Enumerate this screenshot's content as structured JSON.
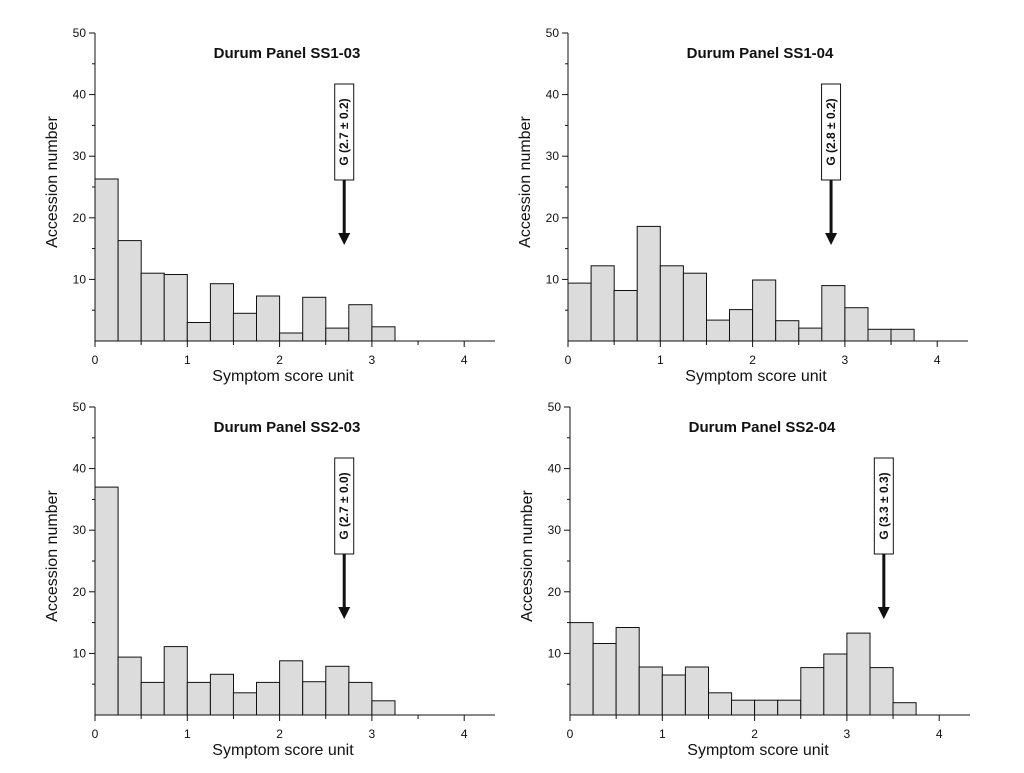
{
  "chart_data": [
    {
      "type": "bar",
      "title": "Durum Panel SS1-03",
      "xlabel": "Symptom score unit",
      "ylabel": "Accession  number",
      "xlim": [
        0,
        4.33
      ],
      "ylim": [
        0,
        50
      ],
      "x_ticks": [
        0,
        1,
        2,
        3,
        4
      ],
      "y_ticks": [
        10,
        20,
        30,
        40,
        50
      ],
      "bin_width": 0.25,
      "bin_starts": [
        0,
        0.25,
        0.5,
        0.75,
        1.0,
        1.25,
        1.5,
        1.75,
        2.0,
        2.25,
        2.5,
        2.75,
        3.0
      ],
      "values": [
        26.3,
        16.3,
        11.0,
        10.8,
        3.0,
        9.3,
        4.5,
        7.3,
        1.3,
        7.1,
        2.1,
        5.9,
        2.3
      ],
      "annotation": {
        "text": "G (2.7 ± 0.2)",
        "x": 2.7
      }
    },
    {
      "type": "bar",
      "title": "Durum Panel SS1-04",
      "xlabel": "Symptom score unit",
      "ylabel": "Accession  number",
      "xlim": [
        0,
        4.33
      ],
      "ylim": [
        0,
        50
      ],
      "x_ticks": [
        0,
        1,
        2,
        3,
        4
      ],
      "y_ticks": [
        10,
        20,
        30,
        40,
        50
      ],
      "bin_width": 0.25,
      "bin_starts": [
        0,
        0.25,
        0.5,
        0.75,
        1.0,
        1.25,
        1.5,
        1.75,
        2.0,
        2.25,
        2.5,
        2.75,
        3.0,
        3.25,
        3.5
      ],
      "values": [
        9.4,
        12.2,
        8.2,
        18.6,
        12.2,
        11.0,
        3.4,
        5.1,
        9.9,
        3.3,
        2.1,
        9.0,
        5.4,
        1.9,
        1.9
      ],
      "annotation": {
        "text": "G (2.8 ± 0.2)",
        "x": 2.85
      }
    },
    {
      "type": "bar",
      "title": "Durum Panel SS2-03",
      "xlabel": "Symptom score unit",
      "ylabel": "Accession  number",
      "xlim": [
        0,
        4.33
      ],
      "ylim": [
        0,
        50
      ],
      "x_ticks": [
        0,
        1,
        2,
        3,
        4
      ],
      "y_ticks": [
        10,
        20,
        30,
        40,
        50
      ],
      "bin_width": 0.25,
      "bin_starts": [
        0,
        0.25,
        0.5,
        0.75,
        1.0,
        1.25,
        1.5,
        1.75,
        2.0,
        2.25,
        2.5,
        2.75,
        3.0
      ],
      "values": [
        37.0,
        9.4,
        5.3,
        11.1,
        5.3,
        6.6,
        3.6,
        5.3,
        8.8,
        5.4,
        7.9,
        5.3,
        2.3
      ],
      "annotation": {
        "text": "G (2.7 ± 0.0)",
        "x": 2.7
      }
    },
    {
      "type": "bar",
      "title": "Durum Panel SS2-04",
      "xlabel": "Symptom score unit",
      "ylabel": "Accession  number",
      "xlim": [
        0,
        4.33
      ],
      "ylim": [
        0,
        50
      ],
      "x_ticks": [
        0,
        1,
        2,
        3,
        4
      ],
      "y_ticks": [
        10,
        20,
        30,
        40,
        50
      ],
      "bin_width": 0.25,
      "bin_starts": [
        0,
        0.25,
        0.5,
        0.75,
        1.0,
        1.25,
        1.5,
        1.75,
        2.0,
        2.25,
        2.5,
        2.75,
        3.0,
        3.25,
        3.5
      ],
      "values": [
        15.0,
        11.6,
        14.2,
        7.8,
        6.5,
        7.8,
        3.6,
        2.4,
        2.4,
        2.4,
        7.7,
        9.9,
        13.3,
        7.7,
        2.0
      ],
      "annotation": {
        "text": "G (3.3 ± 0.3)",
        "x": 3.4
      }
    }
  ]
}
